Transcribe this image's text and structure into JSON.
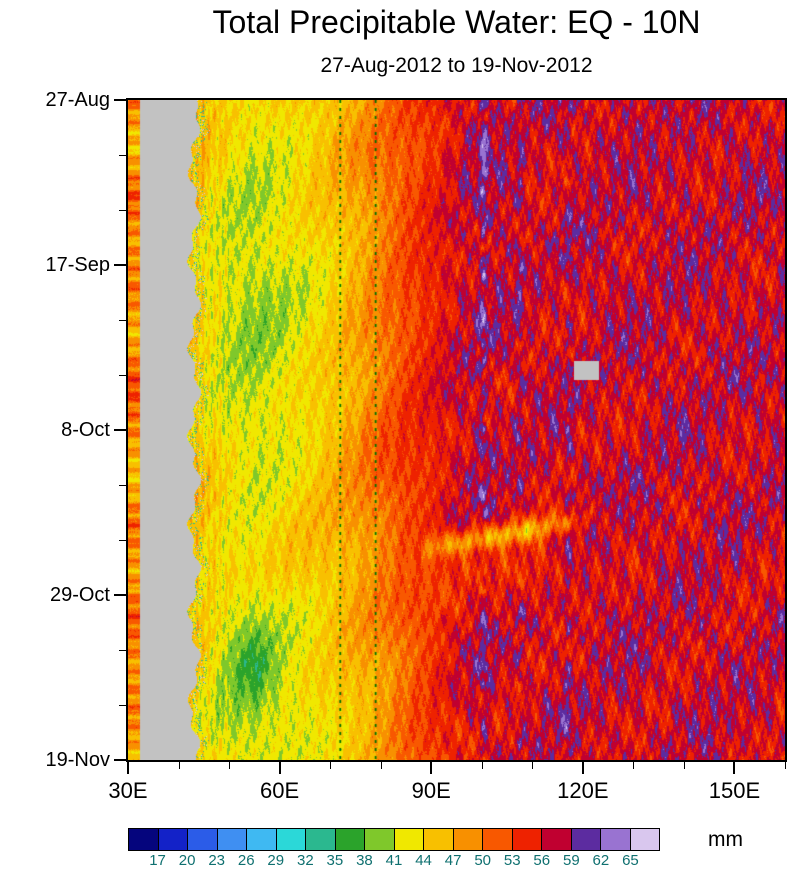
{
  "chart_data": {
    "type": "heatmap",
    "title": "Total Precipitable Water: EQ - 10N",
    "subtitle": "27-Aug-2012 to 19-Nov-2012",
    "x_axis": {
      "range_lon": [
        30,
        160
      ],
      "minor_step": 10,
      "ticks": [
        {
          "lon": 30,
          "label": "30E"
        },
        {
          "lon": 60,
          "label": "60E"
        },
        {
          "lon": 90,
          "label": "90E"
        },
        {
          "lon": 120,
          "label": "120E"
        },
        {
          "lon": 150,
          "label": "150E"
        }
      ]
    },
    "y_axis": {
      "range_days": [
        0,
        84
      ],
      "minor_step_days": 7,
      "ticks": [
        {
          "day": 0,
          "label": "27-Aug"
        },
        {
          "day": 21,
          "label": "17-Sep"
        },
        {
          "day": 42,
          "label": "8-Oct"
        },
        {
          "day": 63,
          "label": "29-Oct"
        },
        {
          "day": 84,
          "label": "19-Nov"
        }
      ]
    },
    "colorbar": {
      "unit": "mm",
      "label_color": "#0f7070",
      "missing_color": "#c2c2c2",
      "levels": [
        17,
        20,
        23,
        26,
        29,
        32,
        35,
        38,
        41,
        44,
        47,
        50,
        53,
        56,
        59,
        62,
        65
      ],
      "colors": [
        "#05057d",
        "#1322c8",
        "#2b5ce8",
        "#3f8ff2",
        "#3fb9f2",
        "#2bd8d8",
        "#2bb88f",
        "#2ba32b",
        "#7fc82b",
        "#f0e800",
        "#f8c000",
        "#f89000",
        "#f85800",
        "#ee2200",
        "#c00030",
        "#5c2ca0",
        "#9973d1",
        "#d9c7ee"
      ]
    },
    "grid": {
      "lon_start": 30,
      "lon_step": 5,
      "day_start": 0,
      "day_step": 6,
      "values": [
        [
          50,
          46,
          46,
          46,
          44,
          42,
          44,
          45,
          46,
          47,
          49,
          52,
          54,
          56,
          58,
          56,
          57,
          58,
          56,
          57,
          58,
          57,
          56,
          58,
          57,
          56,
          57
        ],
        [
          48,
          46,
          46,
          45,
          43,
          42,
          43,
          44,
          46,
          48,
          50,
          52,
          54,
          57,
          59,
          57,
          56,
          57,
          57,
          58,
          57,
          56,
          57,
          57,
          58,
          57,
          56
        ],
        [
          50,
          46,
          46,
          44,
          42,
          41,
          42,
          44,
          45,
          47,
          50,
          53,
          55,
          56,
          58,
          58,
          57,
          56,
          57,
          56,
          58,
          57,
          58,
          56,
          57,
          58,
          57
        ],
        [
          47,
          46,
          46,
          44,
          42,
          41,
          42,
          43,
          45,
          47,
          49,
          52,
          54,
          56,
          57,
          58,
          56,
          57,
          58,
          57,
          56,
          58,
          57,
          57,
          56,
          57,
          58
        ],
        [
          50,
          46,
          46,
          43,
          41,
          40,
          41,
          42,
          44,
          46,
          49,
          52,
          55,
          57,
          58,
          57,
          57,
          56,
          57,
          58,
          57,
          56,
          58,
          57,
          58,
          56,
          57
        ],
        [
          48,
          46,
          46,
          43,
          41,
          40,
          41,
          43,
          44,
          47,
          50,
          53,
          55,
          56,
          58,
          58,
          56,
          57,
          56,
          57,
          58,
          57,
          56,
          58,
          57,
          57,
          56
        ],
        [
          50,
          46,
          46,
          44,
          42,
          41,
          42,
          43,
          45,
          47,
          50,
          53,
          55,
          57,
          57,
          56,
          58,
          57,
          57,
          56,
          57,
          58,
          57,
          56,
          58,
          57,
          58
        ],
        [
          49,
          46,
          46,
          44,
          42,
          41,
          42,
          44,
          46,
          48,
          51,
          53,
          55,
          56,
          58,
          57,
          56,
          58,
          56,
          57,
          56,
          57,
          58,
          57,
          56,
          58,
          57
        ],
        [
          50,
          46,
          46,
          45,
          43,
          42,
          43,
          44,
          46,
          48,
          51,
          54,
          55,
          57,
          58,
          56,
          57,
          56,
          58,
          57,
          58,
          56,
          57,
          58,
          57,
          56,
          58
        ],
        [
          48,
          46,
          46,
          45,
          44,
          43,
          44,
          45,
          46,
          48,
          50,
          53,
          54,
          56,
          57,
          58,
          56,
          57,
          57,
          56,
          57,
          58,
          56,
          57,
          58,
          57,
          56
        ],
        [
          50,
          46,
          46,
          45,
          44,
          43,
          44,
          45,
          46,
          47,
          49,
          51,
          52,
          54,
          55,
          54,
          53,
          55,
          56,
          57,
          56,
          57,
          58,
          56,
          57,
          56,
          57
        ],
        [
          49,
          46,
          46,
          44,
          41,
          40,
          42,
          43,
          45,
          47,
          49,
          52,
          54,
          56,
          57,
          56,
          57,
          56,
          57,
          58,
          57,
          56,
          57,
          58,
          56,
          57,
          58
        ],
        [
          50,
          46,
          46,
          44,
          40,
          36,
          41,
          43,
          44,
          46,
          48,
          51,
          54,
          56,
          58,
          57,
          56,
          57,
          56,
          57,
          58,
          57,
          56,
          57,
          58,
          56,
          57
        ],
        [
          48,
          46,
          46,
          43,
          41,
          40,
          41,
          42,
          44,
          46,
          48,
          51,
          53,
          55,
          57,
          56,
          57,
          58,
          57,
          56,
          57,
          56,
          58,
          57,
          56,
          58,
          56
        ],
        [
          50,
          46,
          46,
          44,
          42,
          41,
          42,
          43,
          44,
          45,
          47,
          50,
          53,
          55,
          56,
          57,
          56,
          57,
          56,
          58,
          56,
          57,
          56,
          58,
          57,
          56,
          57
        ]
      ]
    },
    "west_stripe": {
      "lon_max": 32.3,
      "values": [
        50,
        45,
        52,
        48,
        50,
        46,
        53,
        49,
        45,
        51,
        47,
        52,
        48,
        50,
        46
      ]
    },
    "missing_band": {
      "lon_min": 32.3,
      "lon_max_base": 43.1
    },
    "missing_patch": {
      "lon": [
        118.3,
        123.2
      ],
      "day": [
        33.2,
        35.6
      ]
    },
    "reference_lines": {
      "lons": [
        72,
        79
      ],
      "color": "#007200",
      "style": "dashed"
    },
    "artifact_stripes": [
      {
        "lon": 100.4,
        "amp": 3.6
      },
      {
        "lon": 107.6,
        "amp": 2.4
      },
      {
        "lon": 117.1,
        "amp": 2.6
      }
    ]
  }
}
